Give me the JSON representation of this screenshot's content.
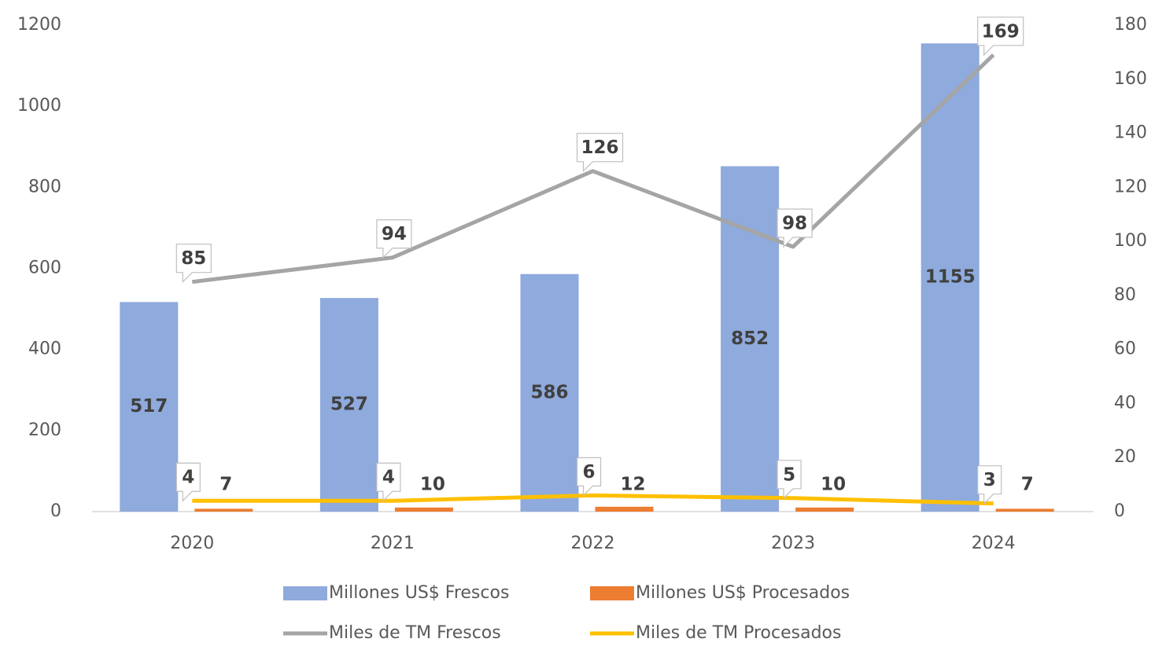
{
  "chart_data": {
    "type": "bar_line",
    "categories": [
      "2020",
      "2021",
      "2022",
      "2023",
      "2024"
    ],
    "series": [
      {
        "name": "Millones US$ Frescos",
        "color": "#8faadc",
        "type": "bar",
        "values": [
          517,
          527,
          586,
          852,
          1155
        ]
      },
      {
        "name": "Millones US$ Procesados",
        "color": "#ed7d31",
        "type": "bar",
        "values": [
          7,
          10,
          12,
          10,
          7
        ]
      },
      {
        "name": "Miles de TM Frescos",
        "color": "#a5a5a5",
        "type": "line",
        "axis": "y2",
        "values": [
          85,
          94,
          126,
          98,
          169
        ]
      },
      {
        "name": "Miles de TM Procesados",
        "color": "#ffc000",
        "type": "line",
        "axis": "y2",
        "values": [
          4,
          4,
          6,
          5,
          3
        ]
      }
    ],
    "ylim": [
      0,
      1200
    ],
    "yticks": [
      0,
      200,
      400,
      600,
      800,
      1000,
      1200
    ],
    "y2lim": [
      0,
      180
    ],
    "y2ticks": [
      0,
      20,
      40,
      60,
      80,
      100,
      120,
      140,
      160,
      180
    ],
    "grid": false
  }
}
